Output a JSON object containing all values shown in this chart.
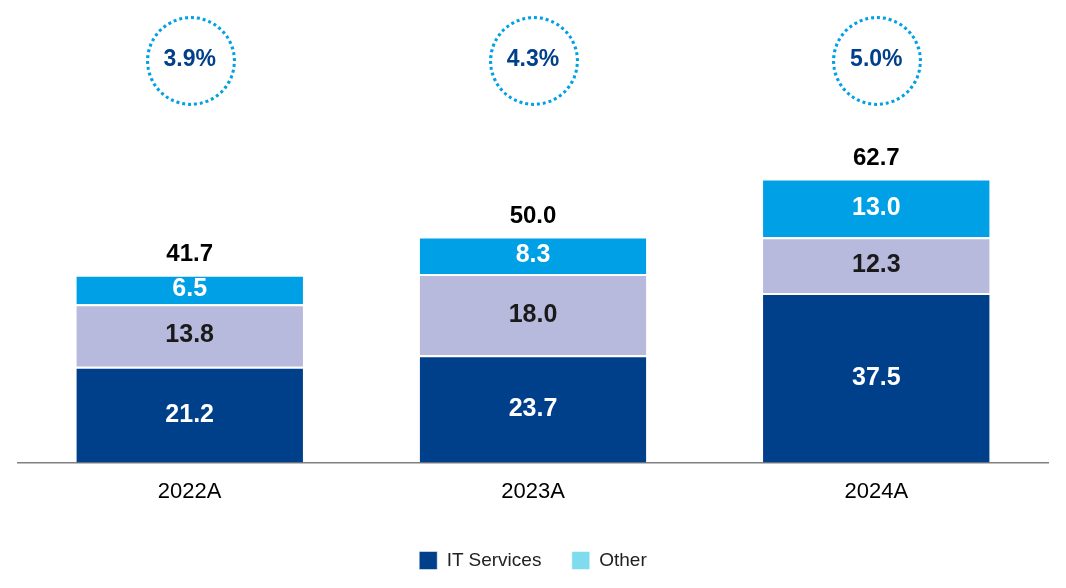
{
  "chart_data": {
    "type": "bar",
    "stacked": true,
    "categories": [
      "2022A",
      "2023A",
      "2024A"
    ],
    "series": [
      {
        "name": "IT Services",
        "color": "#003f8a",
        "values": [
          21.2,
          23.7,
          37.5
        ],
        "value_labels": [
          "21.2",
          "23.7",
          "37.5"
        ]
      },
      {
        "color": "#b8badd",
        "values": [
          13.8,
          18.0,
          12.3
        ],
        "value_labels": [
          "13.8",
          "18.0",
          "12.3"
        ]
      },
      {
        "color": "#00a0e6",
        "values": [
          6.5,
          8.3,
          13.0
        ],
        "value_labels": [
          "6.5",
          "8.3",
          "13.0"
        ]
      },
      {
        "name": "Other",
        "color": "#7fdcef",
        "values": [
          null,
          null,
          null
        ]
      }
    ],
    "totals": [
      "41.7",
      "50.0",
      "62.7"
    ],
    "annotations": [
      "3.9%",
      "4.3%",
      "5.0%"
    ],
    "legend": "bottom",
    "grid": false
  }
}
